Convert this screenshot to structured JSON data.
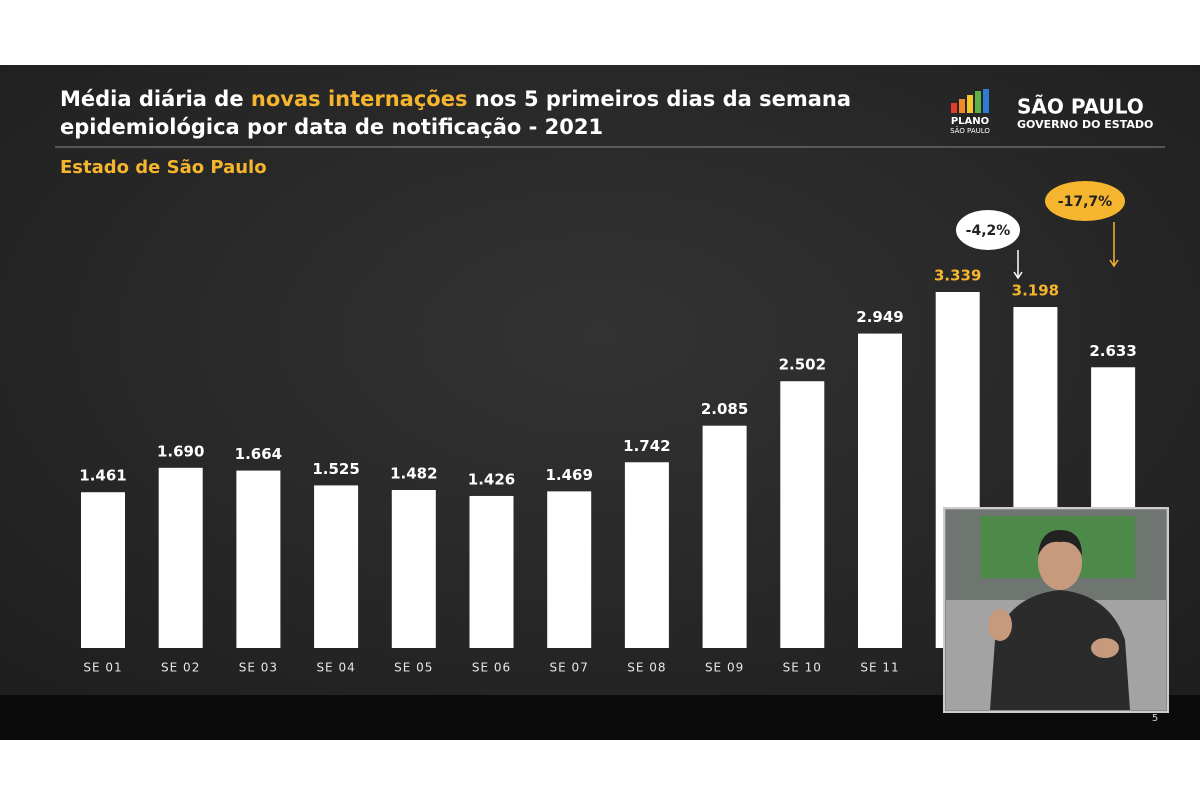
{
  "chart_data": {
    "type": "bar",
    "title": [
      "Média diária de ",
      "novas internações",
      " nos 5 primeiros dias da semana",
      "epidemiológica por data de notificação - 2021"
    ],
    "subtitle": "Estado de São Paulo",
    "highlight_color": "#f5b52e",
    "categories": [
      "SE 01",
      "SE 02",
      "SE 03",
      "SE 04",
      "SE 05",
      "SE 06",
      "SE 07",
      "SE 08",
      "SE 09",
      "SE 10",
      "SE 11",
      null,
      null,
      null
    ],
    "values": [
      1461,
      1690,
      1664,
      1525,
      1482,
      1426,
      1469,
      1742,
      2085,
      2502,
      2949,
      3339,
      3198,
      2633
    ],
    "value_labels": [
      "1.461",
      "1.690",
      "1.664",
      "1.525",
      "1.482",
      "1.426",
      "1.469",
      "1.742",
      "2.085",
      "2.502",
      "2.949",
      "3.339",
      "3.198",
      "2.633"
    ],
    "label_colors": [
      "#ffffff",
      "#ffffff",
      "#ffffff",
      "#ffffff",
      "#ffffff",
      "#ffffff",
      "#ffffff",
      "#ffffff",
      "#ffffff",
      "#ffffff",
      "#ffffff",
      "#f5b52e",
      "#f5b52e",
      "#ffffff"
    ],
    "color": "#ffffff",
    "annotations": [
      {
        "text": "-4,2%",
        "color": "#ffffff"
      },
      {
        "text": "-17,7%",
        "color": "#f5b52e"
      }
    ]
  },
  "logos": {
    "plano": [
      "PLANO",
      "SÃO PAULO"
    ],
    "governo": [
      "SÃO PAULO",
      "GOVERNO DO ESTADO"
    ]
  },
  "page_number": "5"
}
